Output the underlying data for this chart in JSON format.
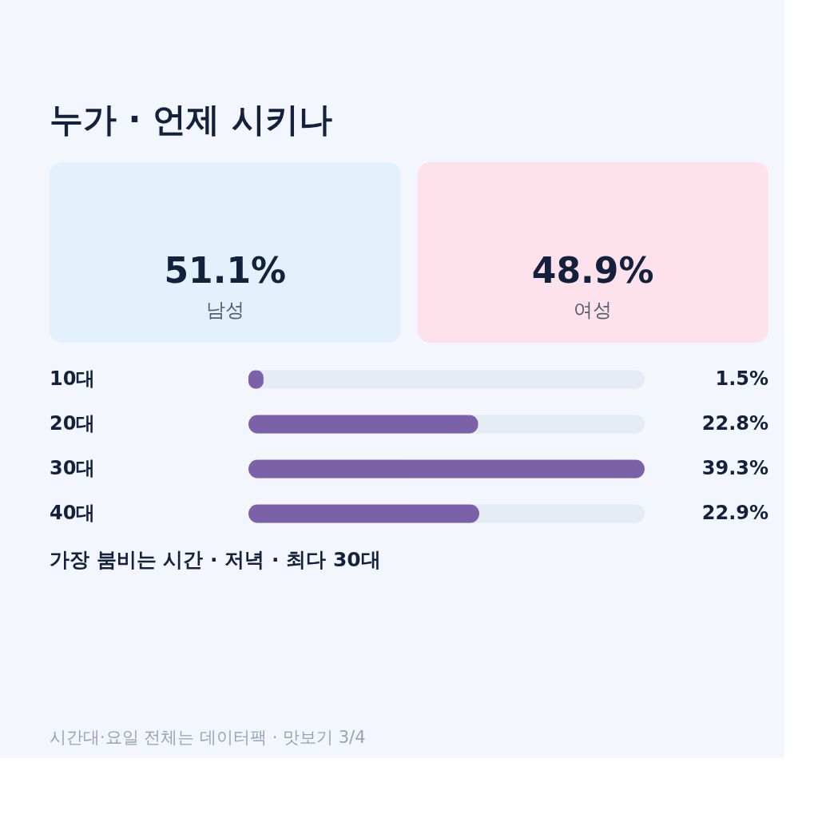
{
  "chart_data": [
    {
      "type": "other",
      "title": "누가 · 언제 시키나",
      "categories": [
        "남성",
        "여성"
      ],
      "values": [
        51.1,
        48.9
      ],
      "colors": [
        "#e3f1fc",
        "#fde2ec"
      ],
      "value_labels": [
        "51.1%",
        "48.9%"
      ]
    },
    {
      "type": "bar",
      "orientation": "horizontal",
      "categories": [
        "10대",
        "20대",
        "30대",
        "40대"
      ],
      "values": [
        1.5,
        22.8,
        39.3,
        22.9
      ],
      "color": "#7b62a8",
      "value_labels": [
        "1.5%",
        "22.8%",
        "39.3%",
        "22.9%"
      ],
      "annotations": [
        "가장 붐비는 시간 · 저녁 · 최다 30대",
        "시간대·요일 전체는 데이터팩 · 맛보기 3/4"
      ]
    }
  ]
}
